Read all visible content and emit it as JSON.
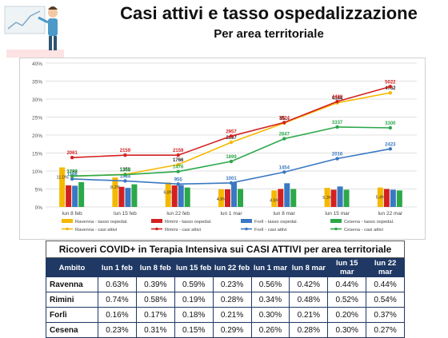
{
  "header": {
    "title": "Casi attivi e tasso ospedalizzazione",
    "subtitle": "Per area territoriale"
  },
  "colors": {
    "ravenna": "#f5b800",
    "rimini": "#d42020",
    "forli": "#3a78c2",
    "cesena": "#2ca84a",
    "table_header": "#1f3864"
  },
  "chart_data": {
    "type": "bar+line",
    "categories": [
      "lun 8 feb",
      "lun 15 feb",
      "lun 22 feb",
      "lun 1 mar",
      "lun 8 mar",
      "lun 15 mar",
      "lun 22 mar"
    ],
    "y_ticks": [
      "0%",
      "5%",
      "10%",
      "15%",
      "20%",
      "25%",
      "30%",
      "35%",
      "40%"
    ],
    "ylim": [
      0,
      40
    ],
    "bar_series": [
      {
        "name": "Ravenna - tasso ospedal.",
        "color": "#f5b800",
        "values": [
          11.0,
          8.2,
          6.8,
          4.9,
          4.6,
          5.3,
          5.4
        ],
        "labels": [
          "11.0%",
          "8.2%",
          "6.8%",
          "4.9%",
          "4.6%",
          "5.3%",
          "5.4%"
        ]
      },
      {
        "name": "Rimini - tasso ospedal.",
        "color": "#d42020",
        "values": [
          6.0,
          5.6,
          6.0,
          4.9,
          5.0,
          4.8,
          5.0
        ],
        "labels": []
      },
      {
        "name": "Forlì - tasso ospedal.",
        "color": "#3a78c2",
        "values": [
          5.9,
          5.3,
          6.1,
          6.8,
          6.6,
          5.7,
          4.8
        ],
        "labels": []
      },
      {
        "name": "Cesena - tasso ospedal.",
        "color": "#2ca84a",
        "values": [
          6.9,
          6.3,
          5.4,
          5.0,
          5.0,
          4.8,
          4.6
        ],
        "labels": []
      }
    ],
    "line_series": [
      {
        "name": "Ravenna - casi attivi",
        "color": "#f5b800",
        "points": [
          1282,
          1359,
          1766,
          2697,
          3500,
          4344,
          4762
        ],
        "labels": [
          "1282",
          "1359",
          "1766",
          "2697",
          "35...",
          "4344",
          "4762"
        ]
      },
      {
        "name": "Rimini - casi attivi",
        "color": "#d42020",
        "points": [
          2061,
          2159,
          2159,
          2957,
          3524,
          4400,
          5022
        ],
        "labels": [
          "2061",
          "2159",
          "2159",
          "2957",
          "3524",
          "4400",
          "5022"
        ]
      },
      {
        "name": "Forlì - casi attivi",
        "color": "#3a78c2",
        "points": [
          1168,
          1084,
          955,
          1001,
          1454,
          2016,
          2423
        ],
        "labels": [
          "1168",
          "1084",
          "955",
          "1001",
          "1454",
          "2016",
          "2423"
        ]
      },
      {
        "name": "Cesena - casi attivi",
        "color": "#2ca84a",
        "points": [
          1290,
          1348,
          1476,
          1899,
          2847,
          3337,
          3300
        ],
        "labels": [
          "1290",
          "1348",
          "1476",
          "1899",
          "2847",
          "3337",
          "3300"
        ]
      }
    ],
    "legend_position": "bottom"
  },
  "table": {
    "title": "Ricoveri COVID+ in Terapia Intensiva sui CASI ATTIVI per area territoriale",
    "headers": [
      "Ambito",
      "lun 1 feb",
      "lun 8 feb",
      "lun 15 feb",
      "lun 22 feb",
      "lun 1 mar",
      "lun 8 mar",
      "lun 15 mar",
      "lun 22 mar"
    ],
    "rows": [
      {
        "name": "Ravenna",
        "values": [
          "0.63%",
          "0.39%",
          "0.59%",
          "0.23%",
          "0.56%",
          "0.42%",
          "0.44%",
          "0.44%"
        ]
      },
      {
        "name": "Rimini",
        "values": [
          "0.74%",
          "0.58%",
          "0.19%",
          "0.28%",
          "0.34%",
          "0.48%",
          "0.52%",
          "0.54%"
        ]
      },
      {
        "name": "Forlì",
        "values": [
          "0.16%",
          "0.17%",
          "0.18%",
          "0.21%",
          "0.30%",
          "0.21%",
          "0.20%",
          "0.37%"
        ]
      },
      {
        "name": "Cesena",
        "values": [
          "0.23%",
          "0.31%",
          "0.15%",
          "0.29%",
          "0.26%",
          "0.28%",
          "0.30%",
          "0.27%"
        ]
      }
    ]
  }
}
